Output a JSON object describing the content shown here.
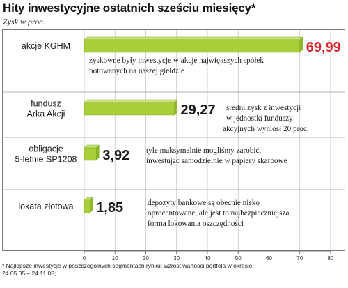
{
  "header": {
    "title": "Hity inwestycyjne ostatnich sześciu miesięcy*",
    "subtitle": "Zysk w proc."
  },
  "footnote": {
    "line1": "* Najlepsze inwestycje w poszczególnych segmentach rynku; wzrost wartości portfela w okresie",
    "line2": "24.05.05 – 24.11.05;"
  },
  "colors": {
    "bar_fill": "#a8cf3a",
    "bar_edge": "#7aa81f",
    "highlight_value": "#d9262c",
    "normal_value": "#1a1a1a",
    "grid": "#bdbdbd"
  },
  "chart_data": {
    "type": "bar",
    "orientation": "horizontal",
    "title": "Hity inwestycyjne ostatnich sześciu miesięcy*",
    "subtitle": "Zysk w proc.",
    "xlim": [
      0,
      80
    ],
    "x_ticks": [
      "0",
      "10",
      "20",
      "30",
      "40",
      "50",
      "60",
      "70",
      "80"
    ],
    "grid": true,
    "categories": [
      {
        "label_lines": [
          "akcje KGHM"
        ],
        "value": 69.99,
        "value_label": "69,99",
        "highlight": true,
        "note_lines": [
          "zyskowne były inwestycje w akcje największych spółek",
          "notowanych na naszej giełdzie"
        ]
      },
      {
        "label_lines": [
          "fundusz",
          "Arka Akcji"
        ],
        "value": 29.27,
        "value_label": "29,27",
        "highlight": false,
        "note_lines": [
          "średni zysk z inwestycji",
          "w jednostki funduszy",
          "akcyjnych wyniósł 20 proc."
        ]
      },
      {
        "label_lines": [
          "obligacje",
          "5-letnie SP1208"
        ],
        "value": 3.92,
        "value_label": "3,92",
        "highlight": false,
        "note_lines": [
          "tyle maksymalnie mogliśmy zarobić,",
          "inwestując samodzielnie w papiery skarbowe"
        ]
      },
      {
        "label_lines": [
          "lokata złotowa"
        ],
        "value": 1.85,
        "value_label": "1,85",
        "highlight": false,
        "note_lines": [
          "depozyty bankowe są obecnie nisko",
          "oprocentowane, ale jest to najbezpieczniejsza",
          "forma lokowania oszczędności"
        ]
      }
    ]
  }
}
